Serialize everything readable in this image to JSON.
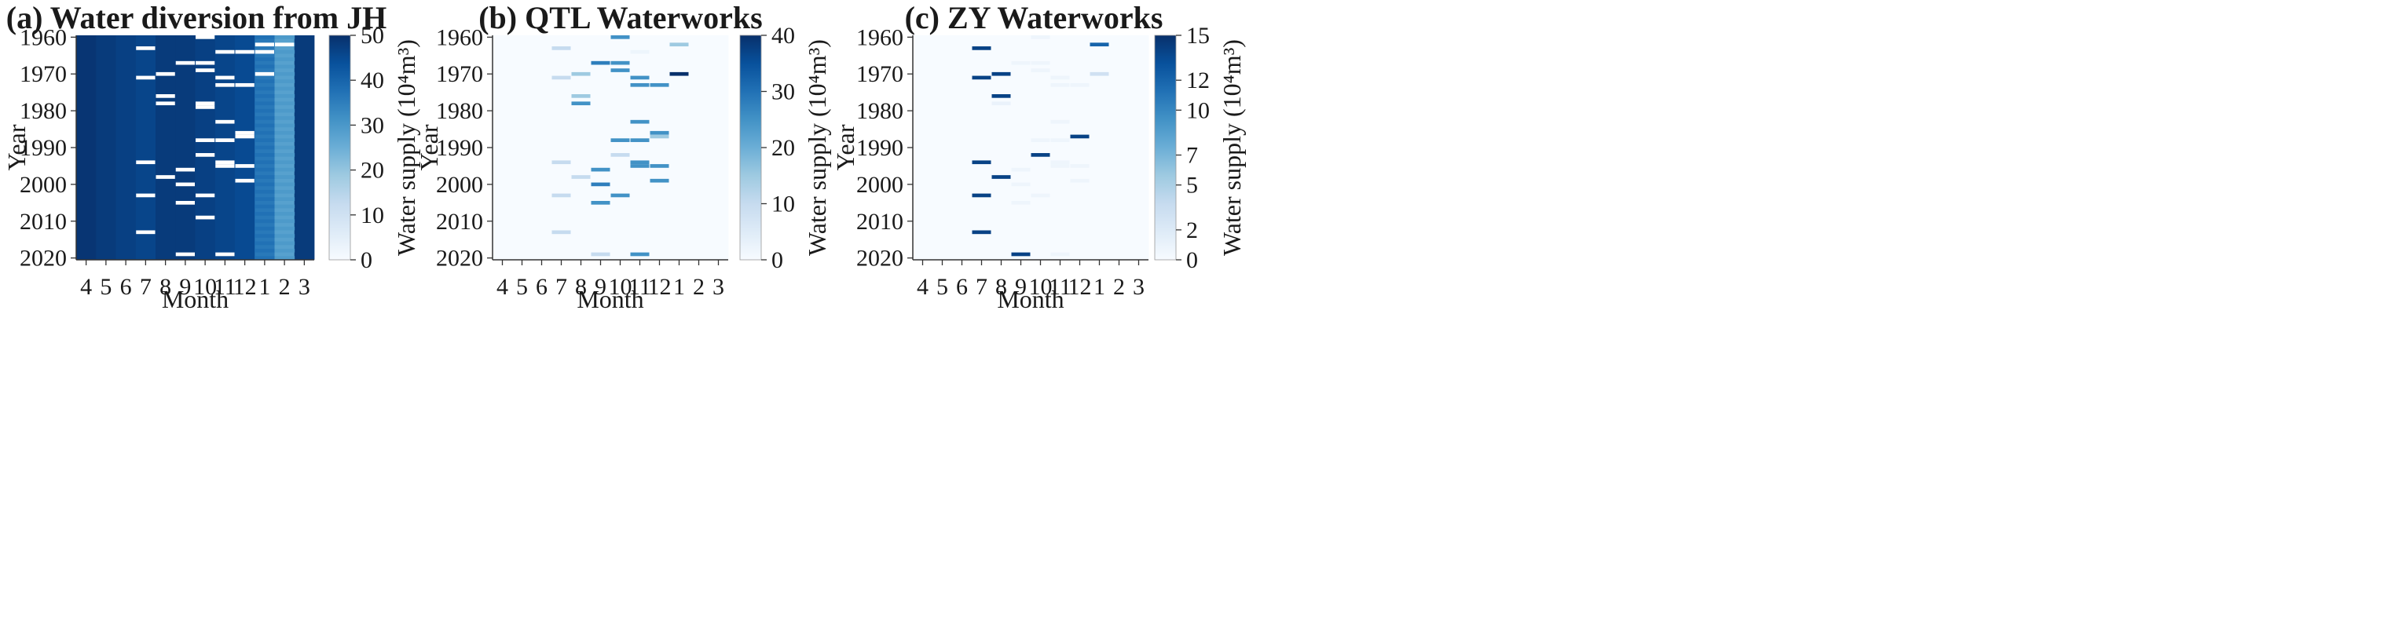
{
  "chart_data": [
    {
      "type": "heatmap",
      "title": "(a) Water diversion from JH",
      "xlabel": "Month",
      "ylabel": "Year",
      "colorbar_label": "Water supply (10⁴m³)",
      "months": [
        "4",
        "5",
        "6",
        "7",
        "8",
        "9",
        "10",
        "11",
        "12",
        "1",
        "2",
        "3"
      ],
      "year_range": [
        1960,
        2020
      ],
      "y_ticks": [
        "1960",
        "1970",
        "1980",
        "1990",
        "2000",
        "2010",
        "2020"
      ],
      "colorbar_range": [
        0,
        50
      ],
      "colorbar_ticks": [
        "0",
        "10",
        "20",
        "30",
        "40",
        "50"
      ],
      "month_base_values": [
        49,
        48,
        47,
        46,
        48,
        48,
        47,
        46,
        45,
        36,
        28,
        48
      ],
      "zero_cells": [
        {
          "month": "7",
          "year": 1963
        },
        {
          "month": "7",
          "year": 1971
        },
        {
          "month": "7",
          "year": 1994
        },
        {
          "month": "7",
          "year": 2003
        },
        {
          "month": "7",
          "year": 2013
        },
        {
          "month": "8",
          "year": 1970
        },
        {
          "month": "8",
          "year": 1976
        },
        {
          "month": "8",
          "year": 1978
        },
        {
          "month": "8",
          "year": 1998
        },
        {
          "month": "9",
          "year": 1967
        },
        {
          "month": "9",
          "year": 1996
        },
        {
          "month": "9",
          "year": 2000
        },
        {
          "month": "9",
          "year": 2005
        },
        {
          "month": "9",
          "year": 2019
        },
        {
          "month": "10",
          "year": 1960
        },
        {
          "month": "10",
          "year": 1967
        },
        {
          "month": "10",
          "year": 1969
        },
        {
          "month": "10",
          "year": 1978
        },
        {
          "month": "10",
          "year": 1979
        },
        {
          "month": "10",
          "year": 1988
        },
        {
          "month": "10",
          "year": 1992
        },
        {
          "month": "10",
          "year": 2003
        },
        {
          "month": "10",
          "year": 2009
        },
        {
          "month": "11",
          "year": 1964
        },
        {
          "month": "11",
          "year": 1971
        },
        {
          "month": "11",
          "year": 1973
        },
        {
          "month": "11",
          "year": 1983
        },
        {
          "month": "11",
          "year": 1988
        },
        {
          "month": "11",
          "year": 1994
        },
        {
          "month": "11",
          "year": 1995
        },
        {
          "month": "11",
          "year": 2019
        },
        {
          "month": "12",
          "year": 1964
        },
        {
          "month": "12",
          "year": 1973
        },
        {
          "month": "12",
          "year": 1986
        },
        {
          "month": "12",
          "year": 1987
        },
        {
          "month": "12",
          "year": 1995
        },
        {
          "month": "12",
          "year": 1999
        },
        {
          "month": "1",
          "year": 1962
        },
        {
          "month": "1",
          "year": 1964
        },
        {
          "month": "1",
          "year": 1970
        },
        {
          "month": "2",
          "year": 1962
        }
      ],
      "nonzero_cells": []
    },
    {
      "type": "heatmap",
      "title": "(b) QTL Waterworks",
      "xlabel": "Month",
      "ylabel": "Year",
      "colorbar_label": "Water supply (10⁴m³)",
      "months": [
        "4",
        "5",
        "6",
        "7",
        "8",
        "9",
        "10",
        "11",
        "12",
        "1",
        "2",
        "3"
      ],
      "year_range": [
        1960,
        2020
      ],
      "y_ticks": [
        "1960",
        "1970",
        "1980",
        "1990",
        "2000",
        "2010",
        "2020"
      ],
      "colorbar_range": [
        0,
        40
      ],
      "colorbar_ticks": [
        "0",
        "10",
        "20",
        "30",
        "40"
      ],
      "month_base_values": [
        0,
        0,
        0,
        0,
        0,
        0,
        0,
        0,
        0,
        0,
        0,
        0
      ],
      "zero_cells": [],
      "nonzero_cells": [
        {
          "month": "7",
          "year": 1963,
          "value": 10
        },
        {
          "month": "7",
          "year": 1971,
          "value": 10
        },
        {
          "month": "7",
          "year": 1994,
          "value": 10
        },
        {
          "month": "7",
          "year": 2003,
          "value": 10
        },
        {
          "month": "7",
          "year": 2013,
          "value": 10
        },
        {
          "month": "8",
          "year": 1970,
          "value": 15
        },
        {
          "month": "8",
          "year": 1976,
          "value": 15
        },
        {
          "month": "8",
          "year": 1978,
          "value": 25
        },
        {
          "month": "8",
          "year": 1998,
          "value": 10
        },
        {
          "month": "9",
          "year": 1967,
          "value": 28
        },
        {
          "month": "9",
          "year": 1996,
          "value": 25
        },
        {
          "month": "9",
          "year": 2000,
          "value": 28
        },
        {
          "month": "9",
          "year": 2005,
          "value": 25
        },
        {
          "month": "9",
          "year": 2019,
          "value": 10
        },
        {
          "month": "10",
          "year": 1960,
          "value": 25
        },
        {
          "month": "10",
          "year": 1967,
          "value": 25
        },
        {
          "month": "10",
          "year": 1969,
          "value": 25
        },
        {
          "month": "10",
          "year": 1988,
          "value": 25
        },
        {
          "month": "10",
          "year": 1992,
          "value": 10
        },
        {
          "month": "10",
          "year": 2003,
          "value": 25
        },
        {
          "month": "11",
          "year": 1964,
          "value": 2
        },
        {
          "month": "11",
          "year": 1971,
          "value": 25
        },
        {
          "month": "11",
          "year": 1973,
          "value": 25
        },
        {
          "month": "11",
          "year": 1983,
          "value": 25
        },
        {
          "month": "11",
          "year": 1988,
          "value": 25
        },
        {
          "month": "11",
          "year": 1994,
          "value": 25
        },
        {
          "month": "11",
          "year": 1995,
          "value": 25
        },
        {
          "month": "11",
          "year": 2019,
          "value": 25
        },
        {
          "month": "12",
          "year": 1973,
          "value": 25
        },
        {
          "month": "12",
          "year": 1986,
          "value": 25
        },
        {
          "month": "12",
          "year": 1987,
          "value": 15
        },
        {
          "month": "12",
          "year": 1995,
          "value": 25
        },
        {
          "month": "12",
          "year": 1999,
          "value": 25
        },
        {
          "month": "1",
          "year": 1962,
          "value": 15
        },
        {
          "month": "1",
          "year": 1970,
          "value": 40
        }
      ]
    },
    {
      "type": "heatmap",
      "title": "(c) ZY Waterworks",
      "xlabel": "Month",
      "ylabel": "Year",
      "colorbar_label": "Water supply (10⁴m³)",
      "months": [
        "4",
        "5",
        "6",
        "7",
        "8",
        "9",
        "10",
        "11",
        "12",
        "1",
        "2",
        "3"
      ],
      "year_range": [
        1960,
        2020
      ],
      "y_ticks": [
        "1960",
        "1970",
        "1980",
        "1990",
        "2000",
        "2010",
        "2020"
      ],
      "colorbar_range": [
        0,
        15
      ],
      "colorbar_ticks": [
        "0",
        "2",
        "5",
        "7",
        "10",
        "12",
        "15"
      ],
      "month_base_values": [
        0,
        0,
        0,
        0,
        0,
        0,
        0,
        0,
        0,
        0,
        0,
        0
      ],
      "zero_cells": [],
      "nonzero_cells": [
        {
          "month": "7",
          "year": 1963,
          "value": 14
        },
        {
          "month": "7",
          "year": 1971,
          "value": 14
        },
        {
          "month": "7",
          "year": 1994,
          "value": 14
        },
        {
          "month": "7",
          "year": 2003,
          "value": 14
        },
        {
          "month": "7",
          "year": 2013,
          "value": 14
        },
        {
          "month": "8",
          "year": 1970,
          "value": 14
        },
        {
          "month": "8",
          "year": 1976,
          "value": 14
        },
        {
          "month": "8",
          "year": 1978,
          "value": 1
        },
        {
          "month": "8",
          "year": 1998,
          "value": 14
        },
        {
          "month": "9",
          "year": 1967,
          "value": 0.7
        },
        {
          "month": "9",
          "year": 1996,
          "value": 0.7
        },
        {
          "month": "9",
          "year": 2000,
          "value": 0.7
        },
        {
          "month": "9",
          "year": 2005,
          "value": 0.7
        },
        {
          "month": "9",
          "year": 2019,
          "value": 14
        },
        {
          "month": "10",
          "year": 1960,
          "value": 0.7
        },
        {
          "month": "10",
          "year": 1967,
          "value": 0.7
        },
        {
          "month": "10",
          "year": 1969,
          "value": 0.7
        },
        {
          "month": "10",
          "year": 1988,
          "value": 0.7
        },
        {
          "month": "10",
          "year": 1992,
          "value": 14
        },
        {
          "month": "10",
          "year": 2003,
          "value": 0.7
        },
        {
          "month": "11",
          "year": 1971,
          "value": 0.7
        },
        {
          "month": "11",
          "year": 1973,
          "value": 0.7
        },
        {
          "month": "11",
          "year": 1983,
          "value": 0.7
        },
        {
          "month": "11",
          "year": 1988,
          "value": 0.7
        },
        {
          "month": "11",
          "year": 1994,
          "value": 0.7
        },
        {
          "month": "11",
          "year": 1995,
          "value": 0.7
        },
        {
          "month": "11",
          "year": 2019,
          "value": 0.7
        },
        {
          "month": "12",
          "year": 1973,
          "value": 0.7
        },
        {
          "month": "12",
          "year": 1987,
          "value": 14
        },
        {
          "month": "12",
          "year": 1995,
          "value": 0.7
        },
        {
          "month": "12",
          "year": 1999,
          "value": 0.7
        },
        {
          "month": "1",
          "year": 1962,
          "value": 12
        },
        {
          "month": "1",
          "year": 1970,
          "value": 3
        }
      ]
    }
  ]
}
